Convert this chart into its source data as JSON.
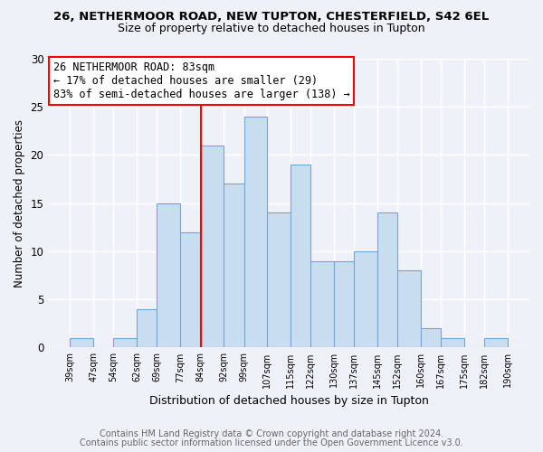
{
  "title1": "26, NETHERMOOR ROAD, NEW TUPTON, CHESTERFIELD, S42 6EL",
  "title2": "Size of property relative to detached houses in Tupton",
  "xlabel": "Distribution of detached houses by size in Tupton",
  "ylabel": "Number of detached properties",
  "footnote1": "Contains HM Land Registry data © Crown copyright and database right 2024.",
  "footnote2": "Contains public sector information licensed under the Open Government Licence v3.0.",
  "bar_edges": [
    39,
    47,
    54,
    62,
    69,
    77,
    84,
    92,
    99,
    107,
    115,
    122,
    130,
    137,
    145,
    152,
    160,
    167,
    175,
    182,
    190
  ],
  "bar_heights": [
    1,
    0,
    1,
    4,
    15,
    12,
    21,
    17,
    24,
    14,
    19,
    9,
    9,
    10,
    14,
    8,
    2,
    1,
    0,
    1
  ],
  "bar_color": "#c9ddf0",
  "bar_edgecolor": "#6aaad4",
  "property_line_x": 84,
  "property_line_color": "red",
  "annotation_title": "26 NETHERMOOR ROAD: 83sqm",
  "annotation_line1": "← 17% of detached houses are smaller (29)",
  "annotation_line2": "83% of semi-detached houses are larger (138) →",
  "annotation_box_edgecolor": "red",
  "annotation_box_facecolor": "white",
  "ylim": [
    0,
    30
  ],
  "yticks": [
    0,
    5,
    10,
    15,
    20,
    25,
    30
  ],
  "tick_labels": [
    "39sqm",
    "47sqm",
    "54sqm",
    "62sqm",
    "69sqm",
    "77sqm",
    "84sqm",
    "92sqm",
    "99sqm",
    "107sqm",
    "115sqm",
    "122sqm",
    "130sqm",
    "137sqm",
    "145sqm",
    "152sqm",
    "160sqm",
    "167sqm",
    "175sqm",
    "182sqm",
    "190sqm"
  ],
  "background_color": "#eef2f8",
  "title1_fontsize": 9.5,
  "title2_fontsize": 9.0,
  "ylabel_fontsize": 8.5,
  "xlabel_fontsize": 9.0,
  "annotation_fontsize": 8.5,
  "footnote_fontsize": 7.0,
  "footnote_color": "#666666"
}
